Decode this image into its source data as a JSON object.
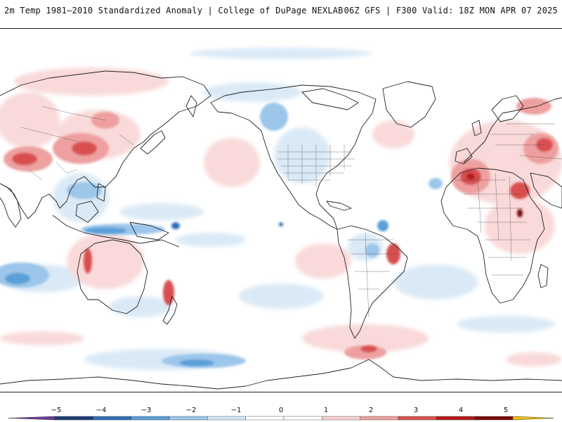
{
  "header": {
    "title": "2m Temp 1981–2010 Standardized Anomaly | College of DuPage NEXLAB",
    "run_info": "06Z GFS | F300 Valid: 18Z MON APR 07 2025"
  },
  "colorbar": {
    "ticks": [
      "−5",
      "−4",
      "−3",
      "−2",
      "−1",
      "0",
      "1",
      "2",
      "3",
      "4",
      "5"
    ],
    "colors": [
      "#6a3d9a",
      "#1f3b73",
      "#2f6fb3",
      "#5a9fd8",
      "#9cc6ea",
      "#d4e6f5",
      "#ffffff",
      "#ffffff",
      "#f8d3d3",
      "#eea0a0",
      "#d95050",
      "#b51a1a",
      "#7a0a0a",
      "#f5c400"
    ]
  },
  "map": {
    "projection": "equirectangular",
    "center_longitude": "180"
  }
}
